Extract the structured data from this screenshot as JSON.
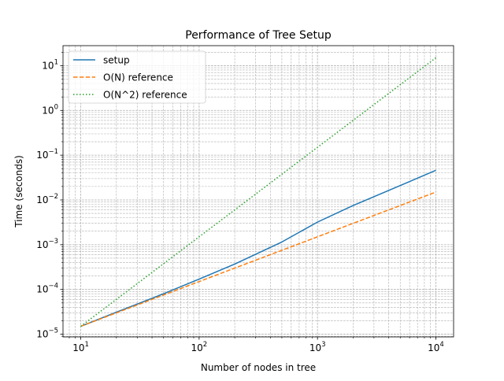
{
  "chart_data": {
    "type": "line",
    "title": "Performance of Tree Setup",
    "xlabel": "Number of nodes in tree",
    "ylabel": "Time (seconds)",
    "x_scale": "log",
    "y_scale": "log",
    "xlim": [
      7.08,
      14120
    ],
    "ylim": [
      8.7e-06,
      28
    ],
    "grid": true,
    "legend_position": "top-left",
    "x_ticks": [
      {
        "value": 10,
        "base": "10",
        "exp": "1"
      },
      {
        "value": 100,
        "base": "10",
        "exp": "2"
      },
      {
        "value": 1000,
        "base": "10",
        "exp": "3"
      },
      {
        "value": 10000,
        "base": "10",
        "exp": "4"
      }
    ],
    "y_ticks": [
      {
        "value": 1e-05,
        "base": "10",
        "exp": "−5"
      },
      {
        "value": 0.0001,
        "base": "10",
        "exp": "−4"
      },
      {
        "value": 0.001,
        "base": "10",
        "exp": "−3"
      },
      {
        "value": 0.01,
        "base": "10",
        "exp": "−2"
      },
      {
        "value": 0.1,
        "base": "10",
        "exp": "−1"
      },
      {
        "value": 1,
        "base": "10",
        "exp": "0"
      },
      {
        "value": 10,
        "base": "10",
        "exp": "1"
      }
    ],
    "series": [
      {
        "name": "setup",
        "color": "#1f77b4",
        "style": "solid",
        "x": [
          10,
          20,
          50,
          100,
          200,
          500,
          1000,
          2000,
          5000,
          10000
        ],
        "y": [
          1.5e-05,
          3.1e-05,
          8e-05,
          0.00017,
          0.00037,
          0.00115,
          0.0032,
          0.0075,
          0.021,
          0.046
        ]
      },
      {
        "name": "O(N) reference",
        "color": "#ff7f0e",
        "style": "dashed",
        "x": [
          10,
          10000
        ],
        "y": [
          1.5e-05,
          0.015
        ]
      },
      {
        "name": "O(N^2) reference",
        "color": "#2ca02c",
        "style": "dotted",
        "x": [
          10,
          10000
        ],
        "y": [
          1.5e-05,
          15
        ]
      }
    ]
  }
}
